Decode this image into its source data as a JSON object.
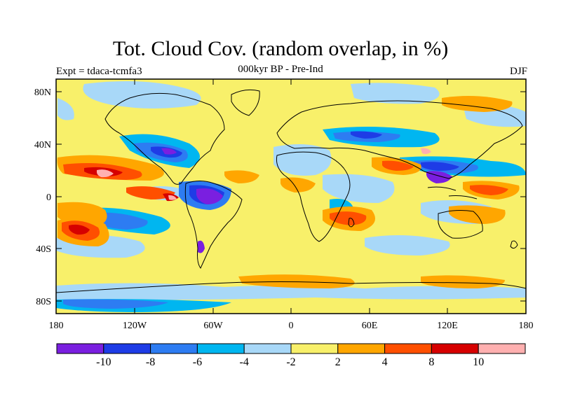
{
  "header": {
    "title": "Tot. Cloud Cov. (random overlap, in %)",
    "center_subtitle": "000kyr BP - Pre-Ind",
    "left_subtitle": "Expt = tdaca-tcmfa3",
    "right_subtitle": "DJF"
  },
  "map": {
    "lat_ticks": [
      "80N",
      "40N",
      "0",
      "40S",
      "80S"
    ],
    "lon_ticks": [
      "180",
      "120W",
      "60W",
      "0",
      "60E",
      "120E",
      "180"
    ]
  },
  "colorbar": {
    "colors": [
      "#7a1fe0",
      "#1e3ce6",
      "#2d7cf2",
      "#00b6f0",
      "#a8d8f8",
      "#f8f06a",
      "#ffa600",
      "#ff4f00",
      "#d60000",
      "#ffb0b0"
    ],
    "labels": [
      "-10",
      "-8",
      "-6",
      "-4",
      "-2",
      "2",
      "4",
      "8",
      "10"
    ]
  }
}
